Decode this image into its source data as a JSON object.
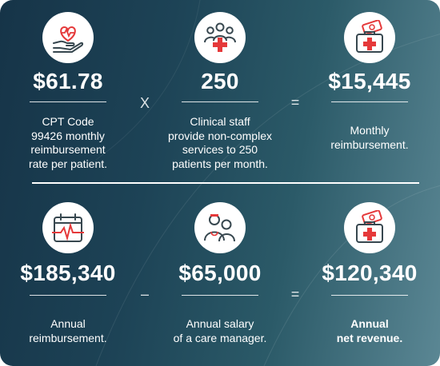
{
  "top_row": [
    {
      "value": "$61.78",
      "description": [
        "CPT Code",
        "99426 monthly",
        "reimbursement",
        "rate per patient."
      ],
      "icon": "heart-hand-icon"
    },
    {
      "value": "250",
      "description": [
        "Clinical staff",
        "provide non-complex",
        "services to 250",
        "patients per month."
      ],
      "icon": "group-medical-icon"
    },
    {
      "value": "$15,445",
      "description": [
        "Monthly",
        "reimbursement."
      ],
      "icon": "medical-bag-money-icon"
    }
  ],
  "top_operators": [
    "X",
    "="
  ],
  "bottom_row": [
    {
      "value": "$185,340",
      "description": [
        "Annual",
        "reimbursement."
      ],
      "icon": "calendar-pulse-icon"
    },
    {
      "value": "$65,000",
      "description": [
        "Annual salary",
        "of a care manager."
      ],
      "icon": "care-manager-icon"
    },
    {
      "value": "$120,340",
      "description": [
        "Annual",
        "net revenue."
      ],
      "icon": "medical-bag-money-icon"
    }
  ],
  "bottom_operators": [
    "–",
    "="
  ],
  "colors": {
    "accent_red": "#e5393a",
    "icon_dark": "#37474f"
  }
}
